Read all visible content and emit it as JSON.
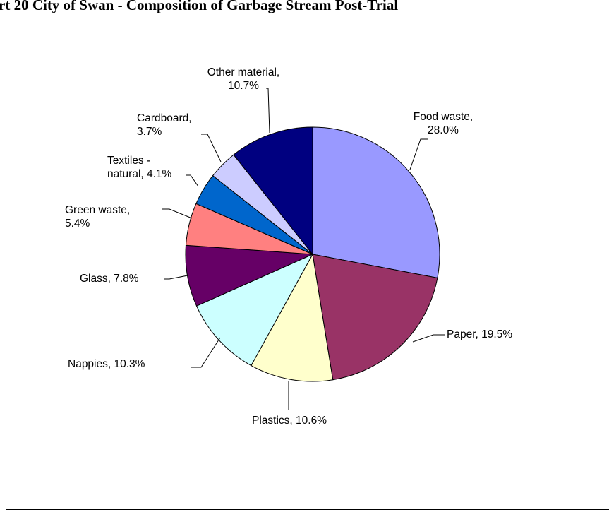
{
  "chart_data": {
    "type": "pie",
    "title": "rt 20    City of Swan - Composition of Garbage Stream Post-Trial",
    "categories": [
      "Food waste",
      "Paper",
      "Plastics",
      "Nappies",
      "Glass",
      "Green waste",
      "Textiles - natural",
      "Cardboard",
      "Other material"
    ],
    "values": [
      28.0,
      19.5,
      10.6,
      10.3,
      7.8,
      5.4,
      4.1,
      3.7,
      10.7
    ],
    "labels": [
      [
        "Food waste,",
        "28.0%"
      ],
      [
        "Paper, 19.5%"
      ],
      [
        "Plastics, 10.6%"
      ],
      [
        "Nappies, 10.3%"
      ],
      [
        "Glass, 7.8%"
      ],
      [
        "Green waste,",
        "5.4%"
      ],
      [
        "Textiles -",
        "natural, 4.1%"
      ],
      [
        "Cardboard,",
        "3.7%"
      ],
      [
        "Other material,",
        "10.7%"
      ]
    ],
    "colors": [
      "#9999ff",
      "#993366",
      "#ffffcc",
      "#ccffff",
      "#660066",
      "#ff8080",
      "#0066cc",
      "#ccccff",
      "#000080"
    ],
    "start_angle": "12 o'clock",
    "direction": "clockwise",
    "legend": "none"
  }
}
